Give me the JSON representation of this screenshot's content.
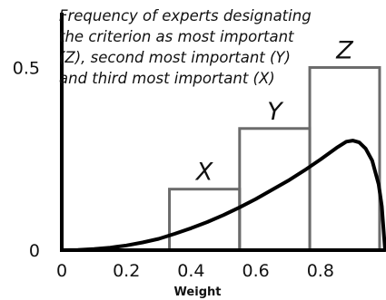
{
  "chart_data": {
    "type": "bar",
    "title": "",
    "xlabel": "Weight",
    "ylabel": "",
    "xlim": [
      0,
      1
    ],
    "ylim": [
      0,
      0.65
    ],
    "x_ticks": [
      0,
      0.2,
      0.4,
      0.6,
      0.8
    ],
    "x_tick_labels": [
      "0",
      "0.2",
      "0.4",
      "0.6",
      "0.8"
    ],
    "y_ticks": [
      0,
      0.5
    ],
    "y_tick_labels": [
      "0",
      "0.5"
    ],
    "grid": false,
    "annotation_lines": [
      "Frequency of experts designating",
      "the criterion as most important",
      "(Z), second most important (Y)",
      "and third most important (X)"
    ],
    "bars": [
      {
        "label": "X",
        "x0": 0.333,
        "x1": 0.55,
        "value": 0.167
      },
      {
        "label": "Y",
        "x0": 0.55,
        "x1": 0.767,
        "value": 0.333
      },
      {
        "label": "Z",
        "x0": 0.767,
        "x1": 0.983,
        "value": 0.5
      }
    ],
    "curve": {
      "x": [
        0,
        0.05,
        0.1,
        0.15,
        0.2,
        0.25,
        0.3,
        0.35,
        0.4,
        0.45,
        0.5,
        0.55,
        0.6,
        0.65,
        0.7,
        0.75,
        0.8,
        0.85,
        0.88,
        0.9,
        0.92,
        0.94,
        0.96,
        0.98,
        0.99,
        1.0
      ],
      "y": [
        0,
        0.0005,
        0.003,
        0.007,
        0.013,
        0.021,
        0.031,
        0.045,
        0.06,
        0.077,
        0.096,
        0.117,
        0.14,
        0.165,
        0.19,
        0.218,
        0.248,
        0.28,
        0.297,
        0.3,
        0.295,
        0.278,
        0.245,
        0.18,
        0.12,
        0
      ]
    },
    "colors": {
      "axis": "#000000",
      "bars": "#6b6b6b",
      "curve": "#000000"
    }
  }
}
